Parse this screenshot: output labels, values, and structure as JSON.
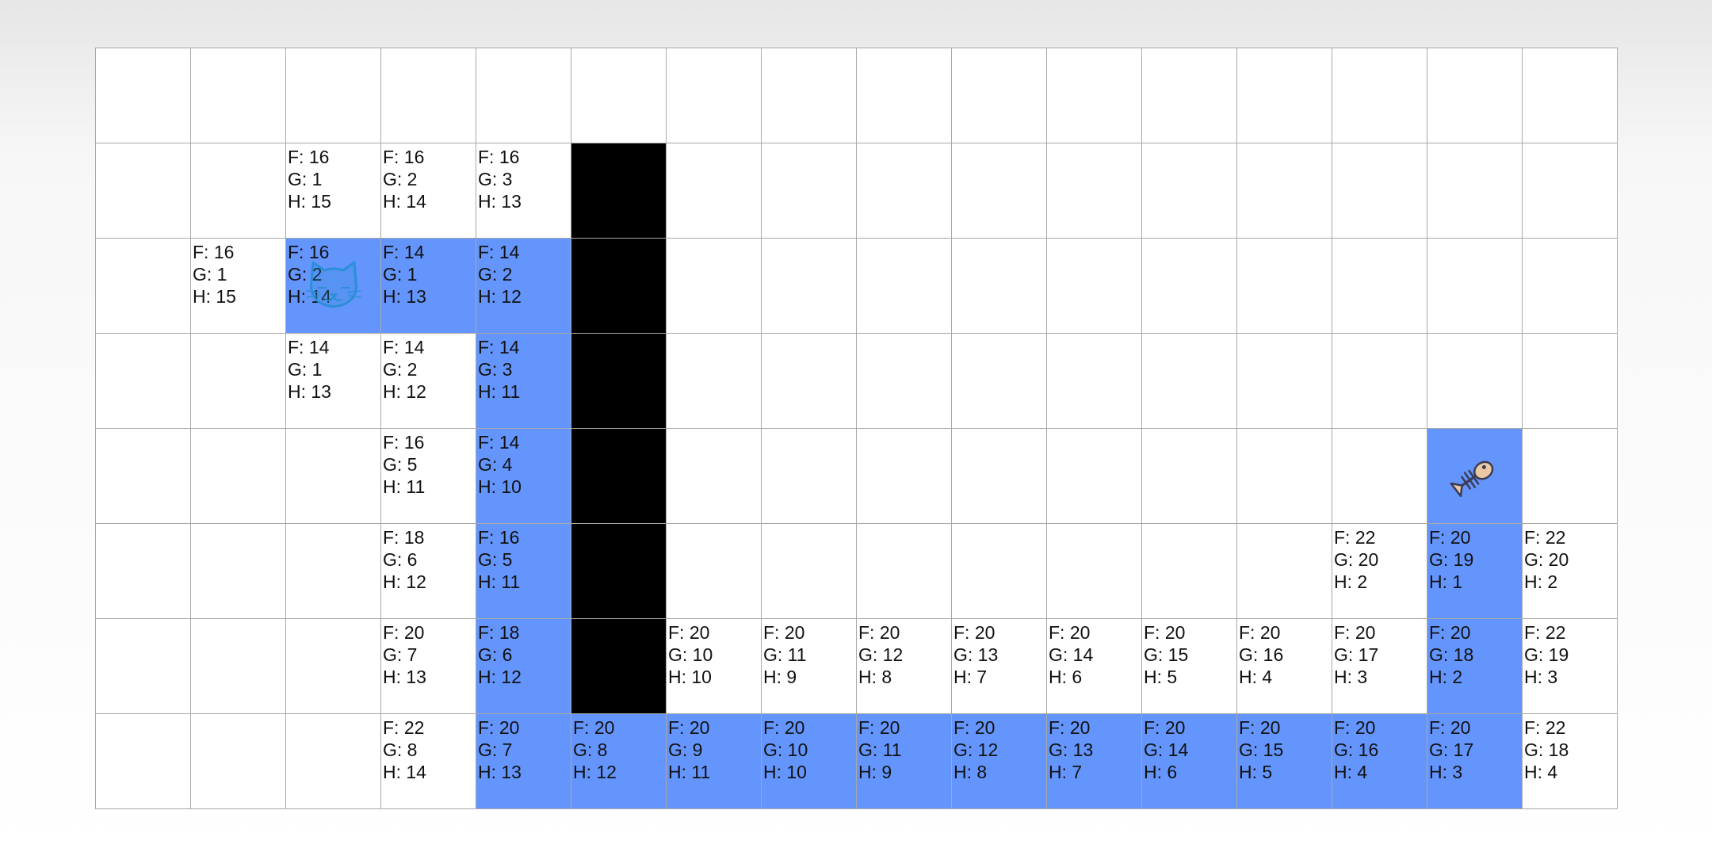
{
  "grid": {
    "columns": 16,
    "rows": 8,
    "cat_position": [
      2,
      2
    ],
    "fish_position": [
      4,
      14
    ],
    "colors": {
      "path": "#6495fd",
      "wall": "#000000",
      "empty": "#ffffff",
      "grid_line": "#a8a8a8",
      "cat": "#2a8fd6"
    },
    "walls": [
      [
        1,
        5
      ],
      [
        2,
        5
      ],
      [
        3,
        5
      ],
      [
        4,
        5
      ],
      [
        5,
        5
      ],
      [
        6,
        5
      ]
    ],
    "path": [
      [
        2,
        2
      ],
      [
        2,
        3
      ],
      [
        2,
        4
      ],
      [
        3,
        4
      ],
      [
        4,
        4
      ],
      [
        5,
        4
      ],
      [
        6,
        4
      ],
      [
        7,
        4
      ],
      [
        7,
        5
      ],
      [
        7,
        6
      ],
      [
        7,
        7
      ],
      [
        7,
        8
      ],
      [
        7,
        9
      ],
      [
        7,
        10
      ],
      [
        7,
        11
      ],
      [
        7,
        12
      ],
      [
        7,
        13
      ],
      [
        7,
        14
      ],
      [
        6,
        14
      ],
      [
        5,
        14
      ],
      [
        4,
        14
      ]
    ],
    "scored_cells": [
      {
        "r": 1,
        "c": 2,
        "f": "F: 16",
        "g": "G: 1",
        "h": "H: 15"
      },
      {
        "r": 1,
        "c": 3,
        "f": "F: 16",
        "g": "G: 2",
        "h": "H: 14"
      },
      {
        "r": 1,
        "c": 4,
        "f": "F: 16",
        "g": "G: 3",
        "h": "H: 13"
      },
      {
        "r": 2,
        "c": 1,
        "f": "F: 16",
        "g": "G: 1",
        "h": "H: 15"
      },
      {
        "r": 2,
        "c": 2,
        "f": "F: 16",
        "g": "G: 2",
        "h": "H: 14"
      },
      {
        "r": 2,
        "c": 3,
        "f": "F: 14",
        "g": "G: 1",
        "h": "H: 13"
      },
      {
        "r": 2,
        "c": 4,
        "f": "F: 14",
        "g": "G: 2",
        "h": "H: 12"
      },
      {
        "r": 3,
        "c": 2,
        "f": "F: 14",
        "g": "G: 1",
        "h": "H: 13"
      },
      {
        "r": 3,
        "c": 3,
        "f": "F: 14",
        "g": "G: 2",
        "h": "H: 12"
      },
      {
        "r": 3,
        "c": 4,
        "f": "F: 14",
        "g": "G: 3",
        "h": "H: 11"
      },
      {
        "r": 4,
        "c": 3,
        "f": "F: 16",
        "g": "G: 5",
        "h": "H: 11"
      },
      {
        "r": 4,
        "c": 4,
        "f": "F: 14",
        "g": "G: 4",
        "h": "H: 10"
      },
      {
        "r": 5,
        "c": 3,
        "f": "F: 18",
        "g": "G: 6",
        "h": "H: 12"
      },
      {
        "r": 5,
        "c": 4,
        "f": "F: 16",
        "g": "G: 5",
        "h": "H: 11"
      },
      {
        "r": 5,
        "c": 13,
        "f": "F: 22",
        "g": "G: 20",
        "h": "H: 2"
      },
      {
        "r": 5,
        "c": 14,
        "f": "F: 20",
        "g": "G: 19",
        "h": "H: 1"
      },
      {
        "r": 5,
        "c": 15,
        "f": "F: 22",
        "g": "G: 20",
        "h": "H: 2"
      },
      {
        "r": 6,
        "c": 3,
        "f": "F: 20",
        "g": "G: 7",
        "h": "H: 13"
      },
      {
        "r": 6,
        "c": 4,
        "f": "F: 18",
        "g": "G: 6",
        "h": "H: 12"
      },
      {
        "r": 6,
        "c": 6,
        "f": "F: 20",
        "g": "G: 10",
        "h": "H: 10"
      },
      {
        "r": 6,
        "c": 7,
        "f": "F: 20",
        "g": "G: 11",
        "h": "H: 9"
      },
      {
        "r": 6,
        "c": 8,
        "f": "F: 20",
        "g": "G: 12",
        "h": "H: 8"
      },
      {
        "r": 6,
        "c": 9,
        "f": "F: 20",
        "g": "G: 13",
        "h": "H: 7"
      },
      {
        "r": 6,
        "c": 10,
        "f": "F: 20",
        "g": "G: 14",
        "h": "H: 6"
      },
      {
        "r": 6,
        "c": 11,
        "f": "F: 20",
        "g": "G: 15",
        "h": "H: 5"
      },
      {
        "r": 6,
        "c": 12,
        "f": "F: 20",
        "g": "G: 16",
        "h": "H: 4"
      },
      {
        "r": 6,
        "c": 13,
        "f": "F: 20",
        "g": "G: 17",
        "h": "H: 3"
      },
      {
        "r": 6,
        "c": 14,
        "f": "F: 20",
        "g": "G: 18",
        "h": "H: 2"
      },
      {
        "r": 6,
        "c": 15,
        "f": "F: 22",
        "g": "G: 19",
        "h": "H: 3"
      },
      {
        "r": 7,
        "c": 3,
        "f": "F: 22",
        "g": "G: 8",
        "h": "H: 14"
      },
      {
        "r": 7,
        "c": 4,
        "f": "F: 20",
        "g": "G: 7",
        "h": "H: 13"
      },
      {
        "r": 7,
        "c": 5,
        "f": "F: 20",
        "g": "G: 8",
        "h": "H: 12"
      },
      {
        "r": 7,
        "c": 6,
        "f": "F: 20",
        "g": "G: 9",
        "h": "H: 11"
      },
      {
        "r": 7,
        "c": 7,
        "f": "F: 20",
        "g": "G: 10",
        "h": "H: 10"
      },
      {
        "r": 7,
        "c": 8,
        "f": "F: 20",
        "g": "G: 11",
        "h": "H: 9"
      },
      {
        "r": 7,
        "c": 9,
        "f": "F: 20",
        "g": "G: 12",
        "h": "H: 8"
      },
      {
        "r": 7,
        "c": 10,
        "f": "F: 20",
        "g": "G: 13",
        "h": "H: 7"
      },
      {
        "r": 7,
        "c": 11,
        "f": "F: 20",
        "g": "G: 14",
        "h": "H: 6"
      },
      {
        "r": 7,
        "c": 12,
        "f": "F: 20",
        "g": "G: 15",
        "h": "H: 5"
      },
      {
        "r": 7,
        "c": 13,
        "f": "F: 20",
        "g": "G: 16",
        "h": "H: 4"
      },
      {
        "r": 7,
        "c": 14,
        "f": "F: 20",
        "g": "G: 17",
        "h": "H: 3"
      },
      {
        "r": 7,
        "c": 15,
        "f": "F: 22",
        "g": "G: 18",
        "h": "H: 4"
      }
    ],
    "icons": {
      "start": "cat-icon",
      "goal": "fish-bone-icon"
    }
  }
}
